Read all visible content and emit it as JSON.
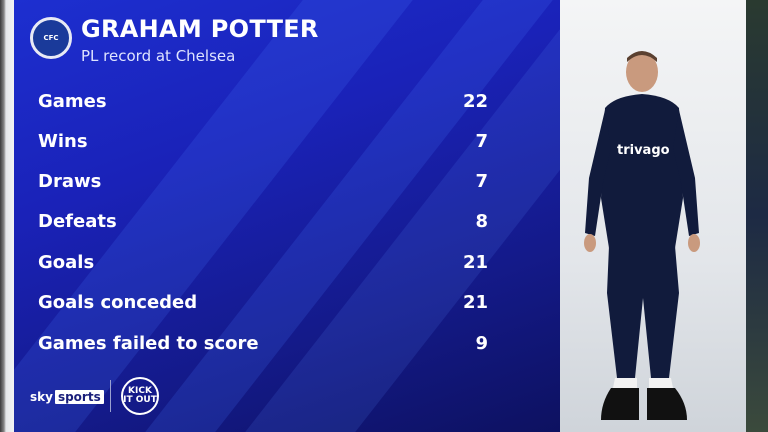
{
  "header": {
    "title": "GRAHAM POTTER",
    "subtitle": "PL record at Chelsea",
    "crest": "CHELSEA"
  },
  "stats": [
    {
      "label": "Games",
      "value": "22"
    },
    {
      "label": "Wins",
      "value": "7"
    },
    {
      "label": "Draws",
      "value": "7"
    },
    {
      "label": "Defeats",
      "value": "8"
    },
    {
      "label": "Goals",
      "value": "21"
    },
    {
      "label": "Goals conceded",
      "value": "21"
    },
    {
      "label": "Games failed to score",
      "value": "9"
    }
  ],
  "footer": {
    "sky": "sky",
    "sports": "sports",
    "kick_it_out": "KICK IT OUT"
  },
  "player": {
    "sponsor": "trivago"
  },
  "colors": {
    "panel": "#1a22b8",
    "text": "#ffffff"
  }
}
